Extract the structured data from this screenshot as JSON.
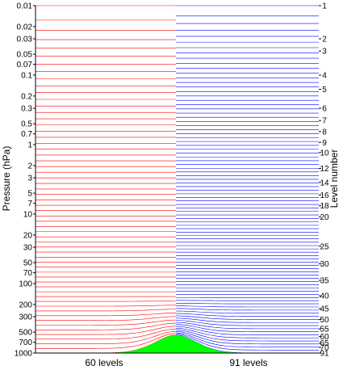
{
  "chart_data": {
    "type": "line",
    "ylabel_left": "Pressure (hPa)",
    "ylabel_right": "Level number",
    "y_scale": "log",
    "ylim": [
      1000,
      0.01
    ],
    "left_ticks": [
      "0.01",
      "0.02",
      "0.03",
      "0.05",
      "0.07",
      "0.1",
      "0.2",
      "0.3",
      "0.5",
      "0.7",
      "1",
      "2",
      "3",
      "5",
      "7",
      "10",
      "20",
      "30",
      "50",
      "70",
      "100",
      "200",
      "300",
      "500",
      "700",
      "1000"
    ],
    "right_ticks": [
      "1",
      "2",
      "3",
      "4",
      "5",
      "6",
      "7",
      "8",
      "9",
      "10",
      "12",
      "14",
      "16",
      "18",
      "20",
      "25",
      "30",
      "35",
      "40",
      "45",
      "50",
      "55",
      "60",
      "65",
      "70",
      "91"
    ],
    "right_tick_pressures": [
      0.01,
      0.03,
      0.045,
      0.1,
      0.16,
      0.3,
      0.45,
      0.65,
      0.93,
      1.3,
      2.2,
      3.5,
      5.3,
      7.6,
      11,
      29,
      52,
      90,
      150,
      230,
      330,
      450,
      580,
      720,
      830,
      1000
    ],
    "panels": [
      {
        "label": "60 levels",
        "level_count": 60,
        "color": "#ff0000"
      },
      {
        "label": "91 levels",
        "level_count": 91,
        "color": "#0000ff"
      }
    ],
    "terrain_color": "#00ff00",
    "terrain_peak_pressure": 550,
    "colors": {
      "left_lines": "#ff0000",
      "right_lines": "#0000ff",
      "terrain": "#00ff00",
      "mid_line": "#ff6600"
    }
  }
}
